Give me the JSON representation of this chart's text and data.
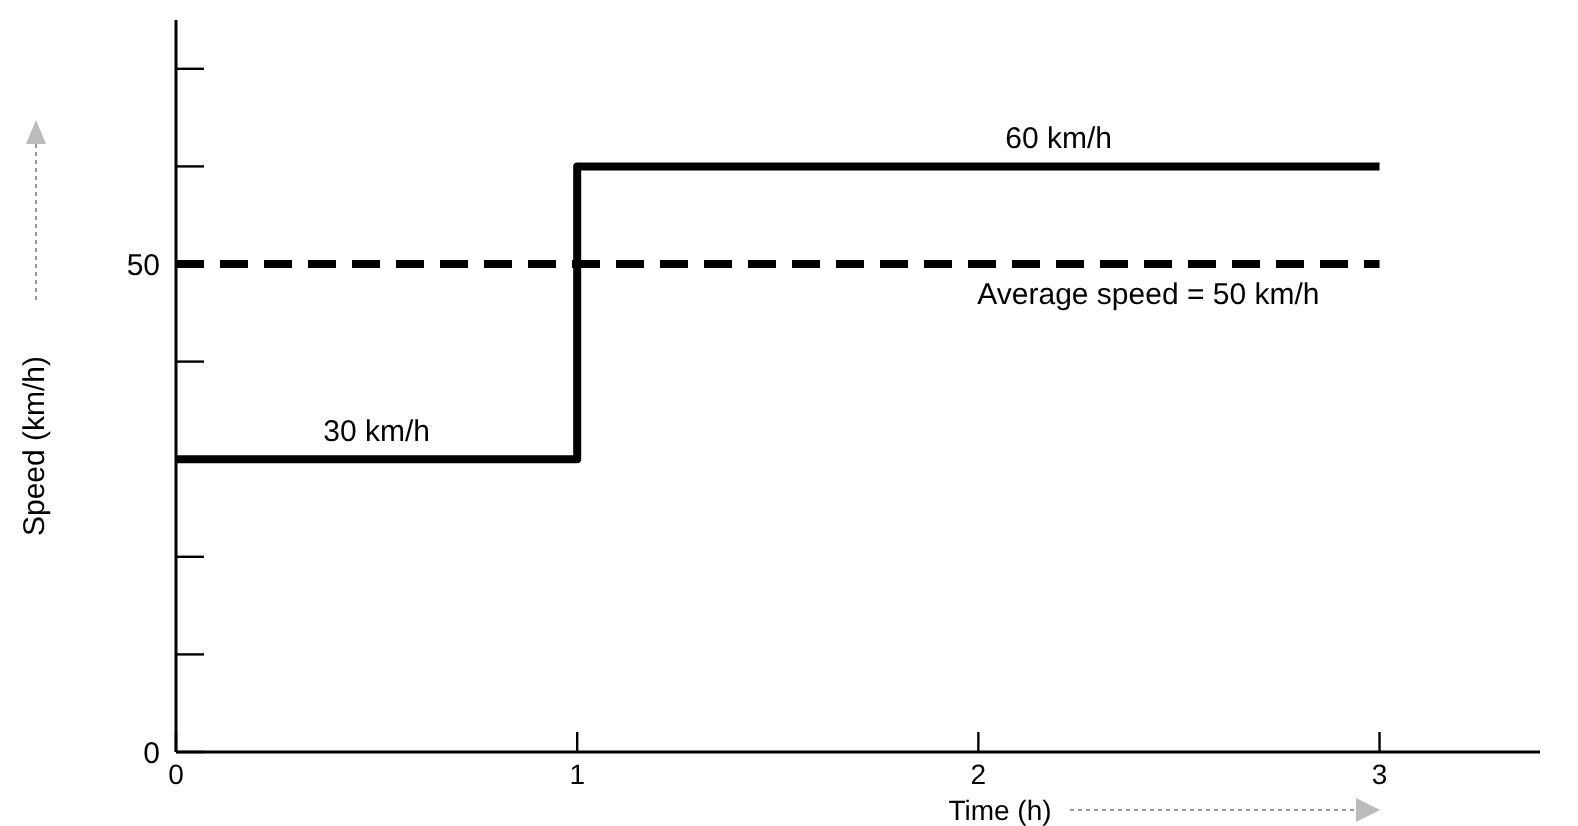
{
  "chart_data": {
    "type": "step",
    "xlabel": "Time (h)",
    "ylabel": "Speed (km/h)",
    "x": [
      0,
      1,
      3
    ],
    "series": [
      {
        "color": "#000000",
        "values": [
          30,
          60,
          60
        ]
      }
    ],
    "xlim": [
      0,
      3.4
    ],
    "xticks": [
      0,
      1,
      2,
      3
    ],
    "ylim": [
      0,
      75
    ],
    "yticks": [
      0,
      {
        "value": 10,
        "label": null
      },
      {
        "value": 20,
        "label": null
      },
      {
        "value": 30,
        "label": null
      },
      {
        "value": 40,
        "label": null
      },
      50,
      {
        "value": 60,
        "label": null
      },
      {
        "value": 70,
        "label": null
      }
    ],
    "ref_lines": [
      {
        "axis": "y",
        "value": 50,
        "label": "Average speed = 50 km/h",
        "color": "#000000",
        "line_style": "dashed"
      }
    ],
    "annotations": [
      {
        "text": "30 km/h",
        "x": 0.5,
        "y": 30
      },
      {
        "text": "60 km/h",
        "x": 2.2,
        "y": 60
      }
    ],
    "grid": false,
    "marker": "none",
    "line_style": "solid"
  }
}
